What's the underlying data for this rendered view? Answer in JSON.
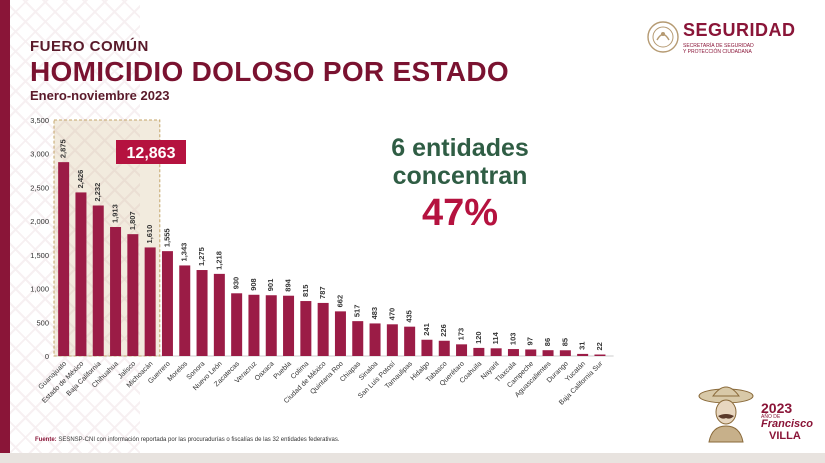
{
  "header": {
    "kicker": "FUERO COMÚN",
    "title": "HOMICIDIO DOLOSO POR ESTADO",
    "period": "Enero-noviembre 2023"
  },
  "logo": {
    "title": "SEGURIDAD",
    "sub1": "SECRETARÍA DE SEGURIDAD",
    "sub2": "Y PROTECCIÓN CIUDADANA",
    "icon": "national-seal-icon"
  },
  "highlight": {
    "total": "12,863",
    "line1": "6 entidades",
    "line2": "concentran",
    "pct": "47%",
    "highlight_count": 6
  },
  "footer": {
    "source_label": "Fuente:",
    "source_text": "SESNSP-CNI con información reportada por las procuradurías o fiscalías de las 32 entidades federativas."
  },
  "badge": {
    "year": "2023",
    "line1": "AÑO DE",
    "name1": "Francisco",
    "name2": "VILLA",
    "icon": "francisco-villa-portrait-icon"
  },
  "colors": {
    "bar": "#9b1c46",
    "highlight_box": "#c4a56a",
    "total_box": "#b5123f",
    "text_dark": "#5a1a2a"
  },
  "chart_data": {
    "type": "bar",
    "title": "HOMICIDIO DOLOSO POR ESTADO",
    "xlabel": "",
    "ylabel": "",
    "ylim": [
      0,
      3500
    ],
    "yticks": [
      0,
      500,
      1000,
      1500,
      2000,
      2500,
      3000,
      3500
    ],
    "ytick_labels": [
      "0",
      "500",
      "1,000",
      "1,500",
      "2,000",
      "2,500",
      "3,000",
      "3,500"
    ],
    "grid": false,
    "categories": [
      "Guanajuato",
      "Estado de México",
      "Baja California",
      "Chihuahua",
      "Jalisco",
      "Michoacán",
      "Guerrero",
      "Morelos",
      "Sonora",
      "Nuevo León",
      "Zacatecas",
      "Veracruz",
      "Oaxaca",
      "Puebla",
      "Colima",
      "Ciudad de México",
      "Quintana Roo",
      "Chiapas",
      "Sinaloa",
      "San Luis Potosí",
      "Tamaulipas",
      "Hidalgo",
      "Tabasco",
      "Querétaro",
      "Coahuila",
      "Nayarit",
      "Tlaxcala",
      "Campeche",
      "Aguascalientes",
      "Durango",
      "Yucatán",
      "Baja California Sur"
    ],
    "values": [
      2875,
      2426,
      2232,
      1913,
      1807,
      1610,
      1555,
      1343,
      1275,
      1218,
      930,
      908,
      901,
      894,
      815,
      787,
      662,
      517,
      483,
      470,
      435,
      241,
      226,
      173,
      120,
      114,
      103,
      97,
      86,
      85,
      31,
      22
    ],
    "value_labels": [
      "2,875",
      "2,426",
      "2,232",
      "1,913",
      "1,807",
      "1,610",
      "1,555",
      "1,343",
      "1,275",
      "1,218",
      "930",
      "908",
      "901",
      "894",
      "815",
      "787",
      "662",
      "517",
      "483",
      "470",
      "435",
      "241",
      "226",
      "173",
      "120",
      "114",
      "103",
      "97",
      "86",
      "85",
      "31",
      "22"
    ]
  }
}
